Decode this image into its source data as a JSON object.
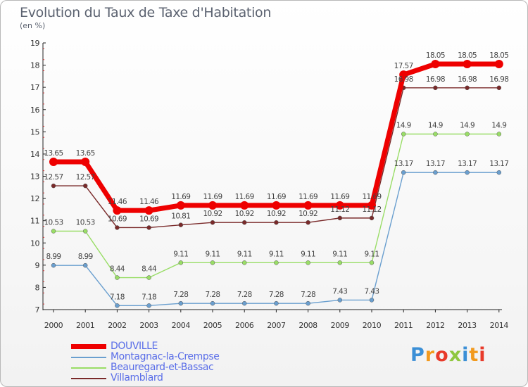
{
  "chart_data": {
    "type": "line",
    "title": "Evolution du Taux de Taxe d'Habitation",
    "subtitle": "(en %)",
    "xlabel": "",
    "ylabel": "",
    "x": [
      "2000",
      "2001",
      "2002",
      "2003",
      "2004",
      "2005",
      "2006",
      "2007",
      "2008",
      "2009",
      "2010",
      "2011",
      "2012",
      "2013",
      "2014"
    ],
    "ylim": [
      7,
      19
    ],
    "yticks": [
      7,
      8,
      9,
      10,
      11,
      12,
      13,
      14,
      15,
      16,
      17,
      18,
      19
    ],
    "grid": false,
    "legend_position": "bottom-left",
    "series": [
      {
        "name": "DOUVILLE",
        "color": "#ee0000",
        "values": [
          13.65,
          13.65,
          11.46,
          11.46,
          11.69,
          11.69,
          11.69,
          11.69,
          11.69,
          11.69,
          11.69,
          17.57,
          18.05,
          18.05,
          18.05
        ],
        "labels": [
          "13.65",
          "13.65",
          "11.46",
          "11.46",
          "11.69",
          "11.69",
          "11.69",
          "11.69",
          "11.69",
          "11.69",
          "11.69",
          "17.57",
          "18.05",
          "18.05",
          "18.05"
        ]
      },
      {
        "name": "Montagnac-la-Crempse",
        "color": "#6a9fcf",
        "values": [
          8.99,
          8.99,
          7.18,
          7.18,
          7.28,
          7.28,
          7.28,
          7.28,
          7.28,
          7.43,
          7.43,
          13.17,
          13.17,
          13.17,
          13.17
        ],
        "labels": [
          "8.99",
          "8.99",
          "7.18",
          "7.18",
          "7.28",
          "7.28",
          "7.28",
          "7.28",
          "7.28",
          "7.43",
          "7.43",
          "13.17",
          "13.17",
          "13.17",
          "13.17"
        ]
      },
      {
        "name": "Beauregard-et-Bassac",
        "color": "#99dd66",
        "values": [
          10.53,
          10.53,
          8.44,
          8.44,
          9.11,
          9.11,
          9.11,
          9.11,
          9.11,
          9.11,
          9.11,
          14.9,
          14.9,
          14.9,
          14.9
        ],
        "labels": [
          "10.53",
          "10.53",
          "8.44",
          "8.44",
          "9.11",
          "9.11",
          "9.11",
          "9.11",
          "9.11",
          "9.11",
          "9.11",
          "14.9",
          "14.9",
          "14.9",
          "14.9"
        ]
      },
      {
        "name": "Villamblard",
        "color": "#7a2a2a",
        "values": [
          12.57,
          12.57,
          10.69,
          10.69,
          10.81,
          10.92,
          10.92,
          10.92,
          10.92,
          11.12,
          11.12,
          16.98,
          16.98,
          16.98,
          16.98
        ],
        "labels": [
          "12.57",
          "12.57",
          "10.69",
          "10.69",
          "10.81",
          "10.92",
          "10.92",
          "10.92",
          "10.92",
          "11.12",
          "11.12",
          "16.98",
          "16.98",
          "16.98",
          "16.98"
        ]
      }
    ]
  },
  "logo": {
    "letters": [
      "P",
      "r",
      "o",
      "x",
      "i",
      "t",
      "i"
    ],
    "colors": [
      "#3b8fd6",
      "#f29a1e",
      "#e83a2a",
      "#8fc73e",
      "#3b8fd6",
      "#f29a1e",
      "#e83a2a"
    ]
  }
}
